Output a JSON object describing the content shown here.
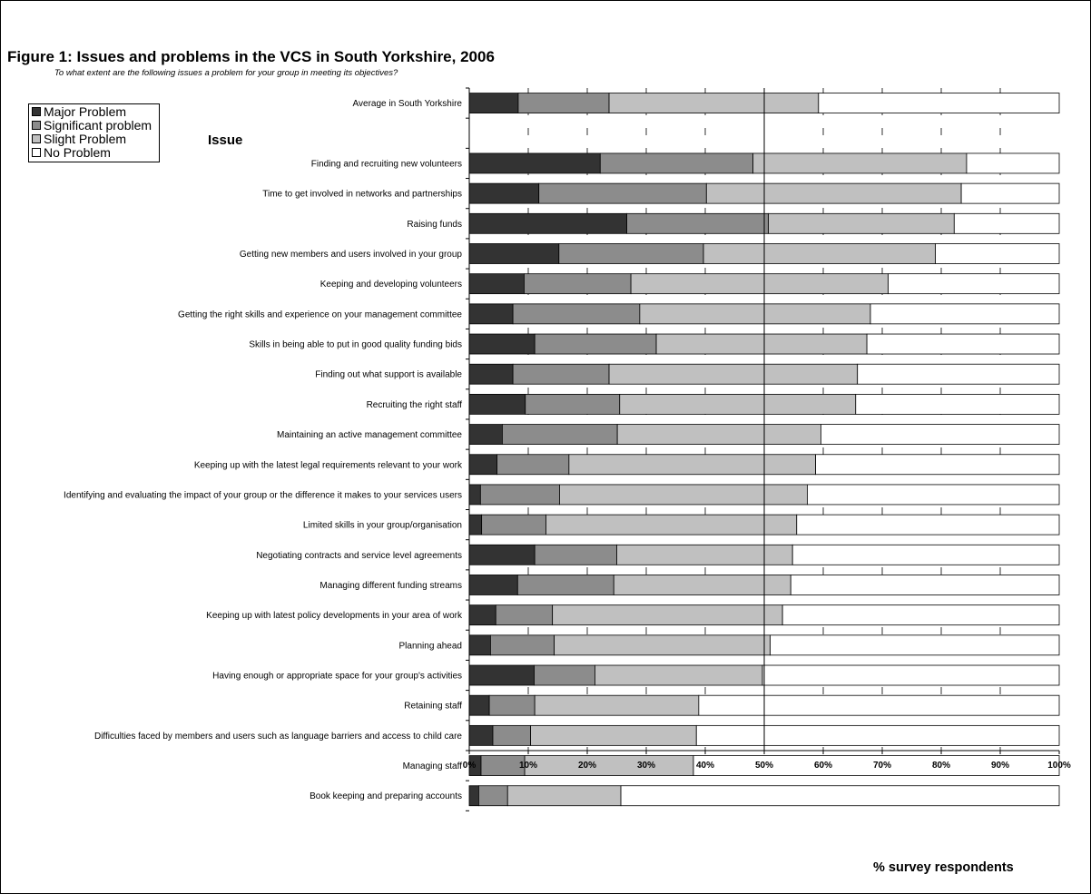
{
  "chart_data": {
    "type": "bar",
    "stacked": true,
    "orientation": "horizontal",
    "title": "Figure 1: Issues and problems in the VCS in South Yorkshire, 2006",
    "subtitle": "To what extent are the following issues a problem for your group in meeting its objectives?",
    "ylabel": "Issue",
    "xlabel": "% survey respondents",
    "xlim": [
      0,
      100
    ],
    "x_ticks": [
      "0%",
      "10%",
      "20%",
      "30%",
      "40%",
      "50%",
      "60%",
      "70%",
      "80%",
      "90%",
      "100%"
    ],
    "grid": "vertical dashed",
    "legend_position": "top-left",
    "categories": [
      "Average in South Yorkshire",
      "Finding and recruiting new volunteers",
      "Time to get involved in networks and partnerships",
      "Raising funds",
      "Getting new members and users involved in your group",
      "Keeping and developing volunteers",
      "Getting the right skills and experience on your management committee",
      "Skills in being able to put in good quality funding bids",
      "Finding out what support is available",
      "Recruiting the right staff",
      "Maintaining an active management committee",
      "Keeping up with the latest legal requirements relevant to your work",
      "Identifying and evaluating the impact of your group or the difference it makes to your services users",
      "Limited skills in your group/organisation",
      "Negotiating contracts and service level agreements",
      "Managing different funding streams",
      "Keeping up with latest policy developments in your area of work",
      "Planning ahead",
      "Having enough or appropriate space for your group's activities",
      "Retaining staff",
      "Difficulties faced by members and users such as language barriers and access to child care",
      "Managing staff",
      "Book keeping and preparing accounts"
    ],
    "row_gap_after_first": true,
    "series": [
      {
        "name": "Major Problem",
        "color": "#333333",
        "values": [
          8.3,
          22.2,
          11.8,
          26.7,
          15.2,
          9.3,
          7.4,
          11.1,
          7.4,
          9.5,
          5.6,
          4.7,
          1.9,
          2.1,
          11.1,
          8.2,
          4.5,
          3.6,
          11.0,
          3.4,
          4.0,
          2.0,
          1.6
        ]
      },
      {
        "name": "Significant problem",
        "color": "#8c8c8c",
        "values": [
          15.4,
          25.9,
          28.4,
          24.0,
          24.5,
          18.1,
          21.5,
          20.6,
          16.3,
          16.0,
          19.5,
          12.2,
          13.4,
          10.9,
          13.9,
          16.3,
          9.6,
          10.8,
          10.3,
          7.7,
          6.4,
          7.4,
          4.9
        ]
      },
      {
        "name": "Slight Problem",
        "color": "#c0c0c0",
        "values": [
          35.5,
          36.2,
          43.2,
          31.5,
          39.3,
          43.6,
          39.1,
          35.7,
          42.1,
          40.0,
          34.5,
          41.8,
          42.0,
          42.5,
          29.8,
          30.0,
          39.0,
          36.6,
          28.4,
          27.8,
          28.1,
          28.6,
          19.2
        ]
      },
      {
        "name": "No Problem",
        "color": "#ffffff",
        "values": [
          40.8,
          15.7,
          16.6,
          17.8,
          21.0,
          29.0,
          32.0,
          32.6,
          34.2,
          34.5,
          40.4,
          41.3,
          42.7,
          44.5,
          45.2,
          45.5,
          46.9,
          49.0,
          50.3,
          61.1,
          61.5,
          62.0,
          74.3
        ]
      }
    ]
  }
}
